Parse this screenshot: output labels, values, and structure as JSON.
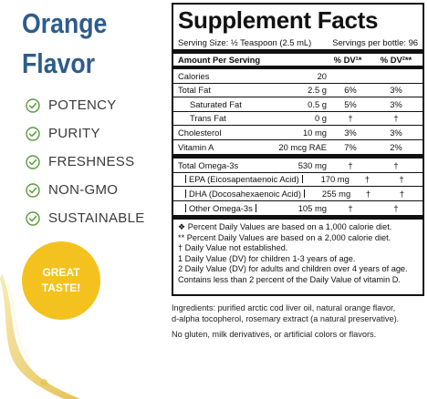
{
  "flavor": {
    "line1": "Orange",
    "line2": "Flavor"
  },
  "claims": [
    {
      "label": "POTENCY",
      "icon": "check-circle-icon"
    },
    {
      "label": "PURITY",
      "icon": "check-circle-icon"
    },
    {
      "label": "FRESHNESS",
      "icon": "check-circle-icon"
    },
    {
      "label": "NON-GMO",
      "icon": "check-circle-icon"
    },
    {
      "label": "SUSTAINABLE",
      "icon": "check-circle-icon"
    }
  ],
  "badge": {
    "line1": "GREAT",
    "line2": "TASTE!"
  },
  "colors": {
    "brand_blue": "#2e5c8a",
    "check_green": "#5a9a3c",
    "badge_yellow": "#f4c21f",
    "oil_gold": "#e7c34d"
  },
  "facts": {
    "title": "Supplement Facts",
    "serving_size": "Serving Size: ½ Teaspoon (2.5 mL)",
    "servings_per": "Servings per bottle: 96",
    "header": {
      "name": "Amount Per Serving",
      "dv1": "% DV¹*",
      "dv2": "% DV²**"
    },
    "rows": [
      {
        "name": "Calories",
        "amount": "20",
        "dv1": "",
        "dv2": ""
      },
      {
        "name": "Total Fat",
        "amount": "2.5 g",
        "dv1": "6%",
        "dv2": "3%"
      },
      {
        "name": "Saturated Fat",
        "amount": "0.5 g",
        "dv1": "5%",
        "dv2": "3%"
      },
      {
        "name": "Trans Fat",
        "amount": "0 g",
        "dv1": "†",
        "dv2": "†"
      },
      {
        "name": "Cholesterol",
        "amount": "10 mg",
        "dv1": "3%",
        "dv2": "3%"
      },
      {
        "name": "Vitamin A",
        "amount": "20 mcg RAE",
        "dv1": "7%",
        "dv2": "2%"
      }
    ],
    "omega_rows": [
      {
        "name": "Total Omega-3s",
        "amount": "530 mg",
        "dv1": "†",
        "dv2": "†"
      },
      {
        "name": "EPA (Eicosapentaenoic Acid)",
        "amount": "170 mg",
        "dv1": "†",
        "dv2": "†"
      },
      {
        "name": "DHA (Docosahexaenoic Acid)",
        "amount": "255 mg",
        "dv1": "†",
        "dv2": "†"
      },
      {
        "name": "Other Omega-3s",
        "amount": "105 mg",
        "dv1": "†",
        "dv2": "†"
      }
    ],
    "notes": [
      "❖ Percent Daily Values are based on a 1,000 calorie diet.",
      "** Percent Daily Values are based on a 2,000 calorie diet.",
      "†  Daily Value not established.",
      "1  Daily Value (DV) for children 1-3 years of age.",
      "2  Daily Value (DV) for adults and children over 4 years of age.",
      "Contains less than 2 percent of the Daily Value of vitamin D."
    ]
  },
  "ingredients": {
    "line1": "Ingredients: purified arctic cod liver oil, natural orange flavor,",
    "line2": "d-alpha tocopherol, rosemary extract (a natural preservative).",
    "line3": "No gluten, milk derivatives, or artificial colors or flavors."
  }
}
